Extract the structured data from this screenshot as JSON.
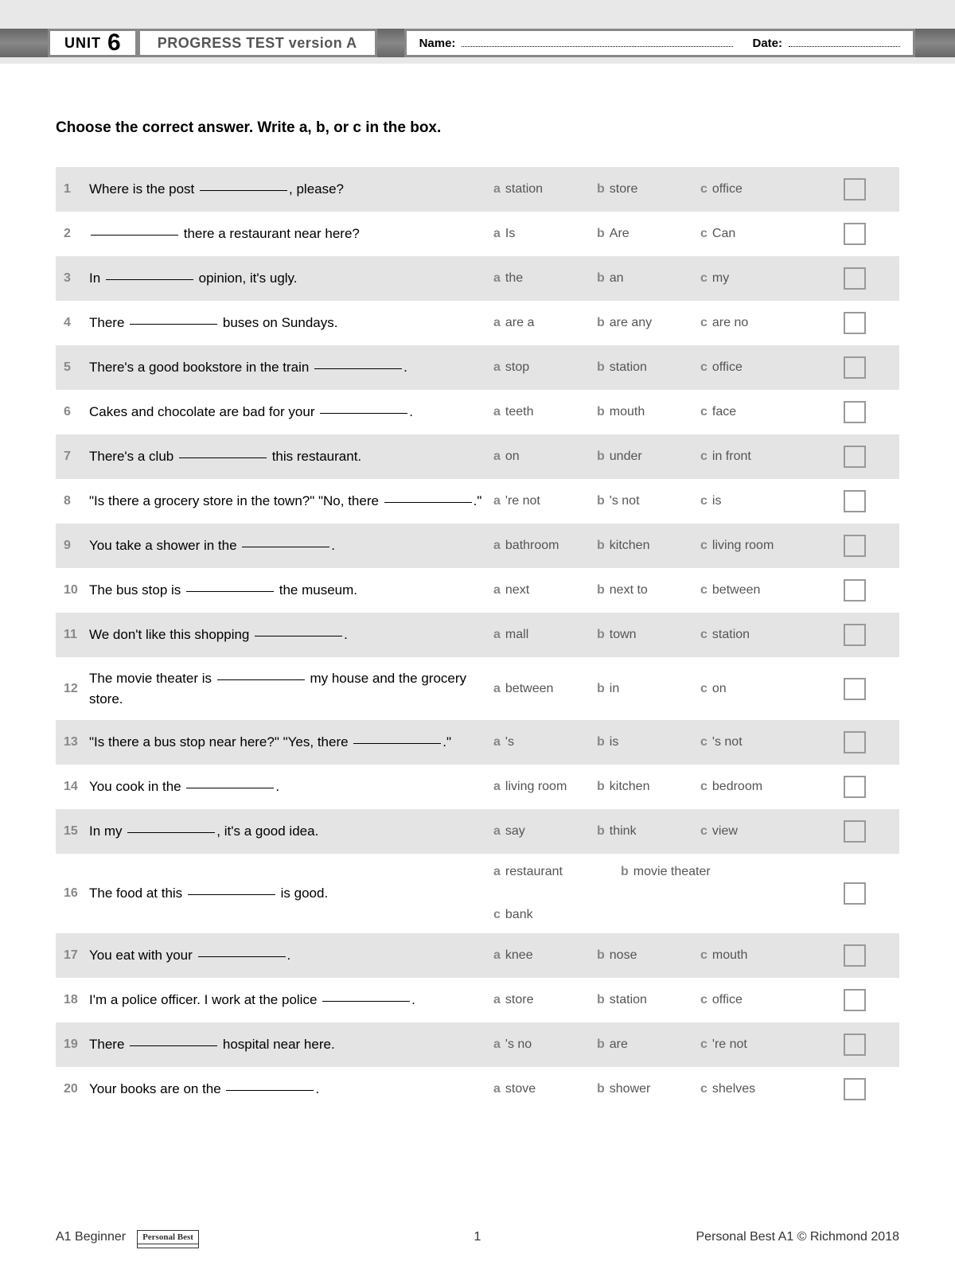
{
  "header": {
    "unit_label": "UNIT",
    "unit_number": "6",
    "title": "PROGRESS TEST version A",
    "name_label": "Name:",
    "date_label": "Date:"
  },
  "instruction": "Choose the correct answer. Write a, b, or c in the box.",
  "option_letters": {
    "a": "a",
    "b": "b",
    "c": "c"
  },
  "questions": [
    {
      "n": "1",
      "pre": "Where is the post ",
      "post": ", please?",
      "a": "station",
      "b": "store",
      "c": "office"
    },
    {
      "n": "2",
      "pre": "",
      "post": " there a restaurant near here?",
      "a": "Is",
      "b": "Are",
      "c": "Can"
    },
    {
      "n": "3",
      "pre": "In ",
      "post": " opinion, it's ugly.",
      "a": "the",
      "b": "an",
      "c": "my"
    },
    {
      "n": "4",
      "pre": "There ",
      "post": " buses on Sundays.",
      "a": "are a",
      "b": "are any",
      "c": "are no"
    },
    {
      "n": "5",
      "pre": "There's a good bookstore in the train ",
      "post": ".",
      "a": "stop",
      "b": "station",
      "c": "office"
    },
    {
      "n": "6",
      "pre": "Cakes and chocolate are bad for your ",
      "post": ".",
      "a": "teeth",
      "b": "mouth",
      "c": "face"
    },
    {
      "n": "7",
      "pre": "There's a club ",
      "post": " this restaurant.",
      "a": "on",
      "b": "under",
      "c": "in front"
    },
    {
      "n": "8",
      "pre": "\"Is there a grocery store in the town?\" \"No, there ",
      "post": ".\"",
      "a": "'re not",
      "b": "'s not",
      "c": "is"
    },
    {
      "n": "9",
      "pre": "You take a shower in the ",
      "post": ".",
      "a": "bathroom",
      "b": "kitchen",
      "c": "living room"
    },
    {
      "n": "10",
      "pre": "The bus stop is ",
      "post": " the museum.",
      "a": "next",
      "b": "next to",
      "c": "between"
    },
    {
      "n": "11",
      "pre": "We don't like this shopping ",
      "post": ".",
      "a": "mall",
      "b": "town",
      "c": "station"
    },
    {
      "n": "12",
      "pre": "The movie theater is ",
      "post": " my house and the grocery store.",
      "a": "between",
      "b": "in",
      "c": "on"
    },
    {
      "n": "13",
      "pre": "\"Is there a bus stop near here?\" \"Yes, there ",
      "post": ".\"",
      "a": "'s",
      "b": "is",
      "c": "'s not"
    },
    {
      "n": "14",
      "pre": "You cook in the ",
      "post": ".",
      "a": "living room",
      "b": "kitchen",
      "c": "bedroom"
    },
    {
      "n": "15",
      "pre": "In my ",
      "post": ", it's a good idea.",
      "a": "say",
      "b": "think",
      "c": "view"
    },
    {
      "n": "16",
      "pre": "The food at this ",
      "post": " is good.",
      "a": "restaurant",
      "b": "movie theater",
      "c": "bank"
    },
    {
      "n": "17",
      "pre": "You eat with your ",
      "post": ".",
      "a": "knee",
      "b": "nose",
      "c": "mouth"
    },
    {
      "n": "18",
      "pre": "I'm a police officer. I work at the police ",
      "post": ".",
      "a": "store",
      "b": "station",
      "c": "office"
    },
    {
      "n": "19",
      "pre": "There ",
      "post": " hospital near here.",
      "a": "'s no",
      "b": "are",
      "c": "'re not"
    },
    {
      "n": "20",
      "pre": "Your books are on the ",
      "post": ".",
      "a": "stove",
      "b": "shower",
      "c": "shelves"
    }
  ],
  "footer": {
    "level": "A1 Beginner",
    "logo": "Personal Best",
    "page": "1",
    "copyright": "Personal Best A1 © Richmond 2018"
  },
  "colors": {
    "shade": "#e4e4e4",
    "muted": "#888888",
    "box_border": "#999999"
  }
}
